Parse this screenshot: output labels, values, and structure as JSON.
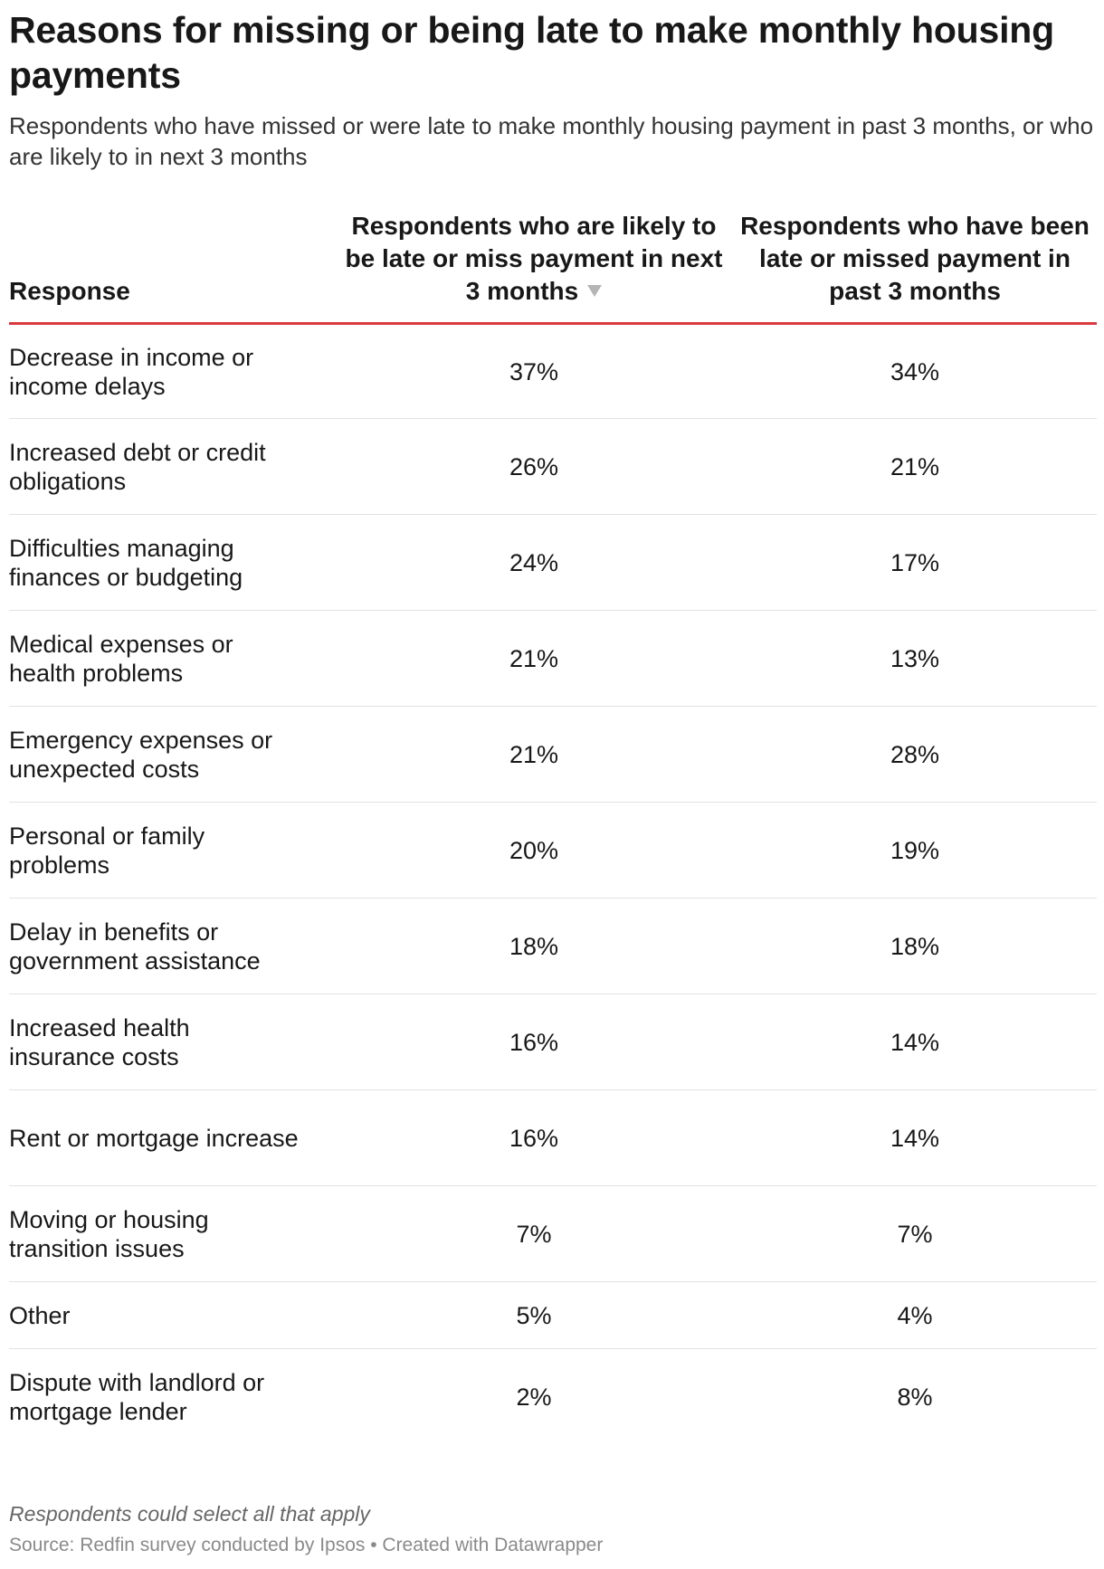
{
  "chart_data": {
    "type": "table",
    "title": "Reasons for missing or being late to make monthly housing payments",
    "subtitle": "Respondents who have missed or were late to make monthly housing payment in past 3 months, or who are likely to in next 3 months",
    "columns": [
      "Response",
      "Respondents who are likely to be late or miss payment in next 3 months",
      "Respondents who have been late or missed payment in past 3 months"
    ],
    "sort": {
      "column": 1,
      "direction": "descending",
      "icon": "sort-descending-icon"
    },
    "rows": [
      {
        "response": "Decrease in income or income delays",
        "next_3_months": "37%",
        "past_3_months": "34%"
      },
      {
        "response": "Increased debt or credit obligations",
        "next_3_months": "26%",
        "past_3_months": "21%"
      },
      {
        "response": "Difficulties managing finances or budgeting",
        "next_3_months": "24%",
        "past_3_months": "17%"
      },
      {
        "response": "Medical expenses or health problems",
        "next_3_months": "21%",
        "past_3_months": "13%"
      },
      {
        "response": "Emergency expenses or unexpected costs",
        "next_3_months": "21%",
        "past_3_months": "28%"
      },
      {
        "response": "Personal or family problems",
        "next_3_months": "20%",
        "past_3_months": "19%"
      },
      {
        "response": "Delay in benefits or government assistance",
        "next_3_months": "18%",
        "past_3_months": "18%"
      },
      {
        "response": "Increased health insurance costs",
        "next_3_months": "16%",
        "past_3_months": "14%"
      },
      {
        "response": "Rent or mortgage increase",
        "next_3_months": "16%",
        "past_3_months": "14%"
      },
      {
        "response": "Moving or housing transition issues",
        "next_3_months": "7%",
        "past_3_months": "7%"
      },
      {
        "response": "Other",
        "next_3_months": "5%",
        "past_3_months": "4%"
      },
      {
        "response": "Dispute with landlord or mortgage lender",
        "next_3_months": "2%",
        "past_3_months": "8%"
      }
    ],
    "notes": "Respondents could select all that apply",
    "source": "Source: Redfin survey conducted by Ipsos • Created with Datawrapper",
    "colors": {
      "header_rule": "#d93a3e",
      "row_divider": "#e2e2e2"
    }
  }
}
